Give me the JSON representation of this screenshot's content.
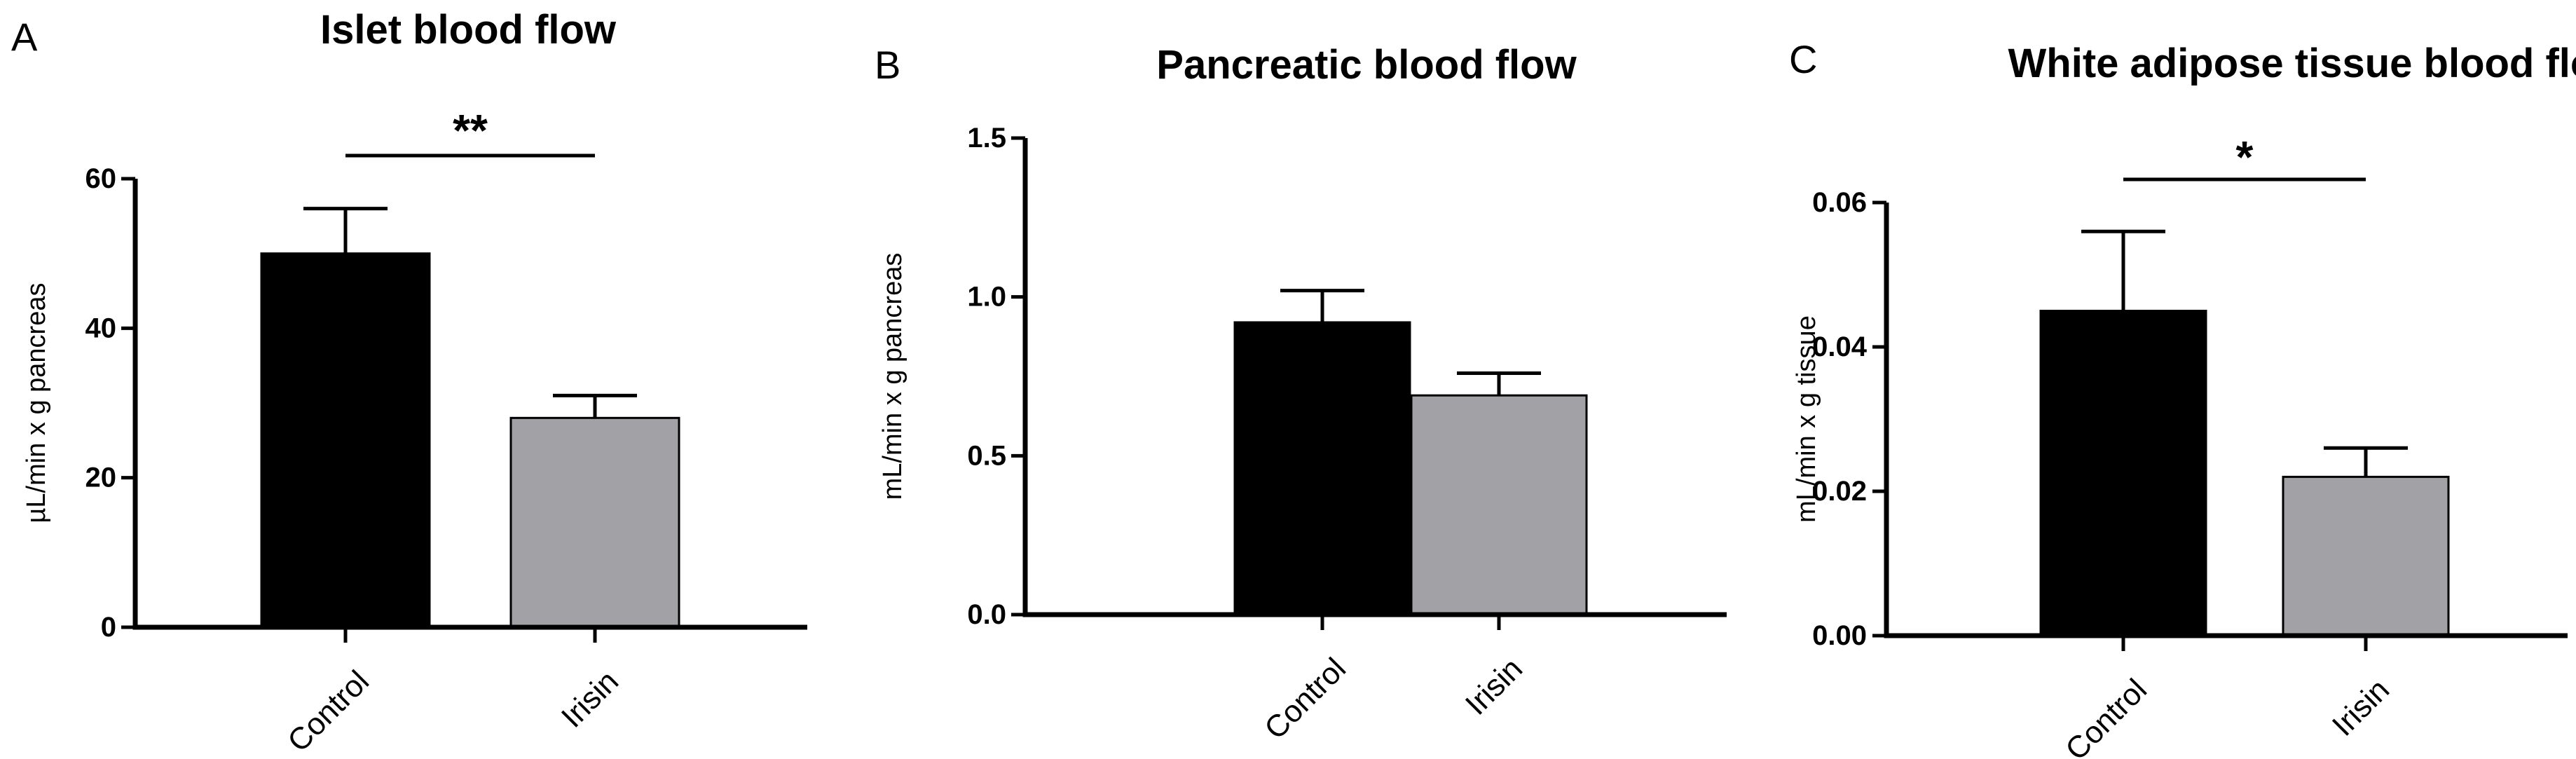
{
  "chart_data": [
    {
      "panel": "A",
      "type": "bar",
      "title": "Islet blood flow",
      "ylabel": "µL/min x g pancreas",
      "xlabel": "",
      "ylim": [
        0,
        60
      ],
      "yticks": [
        0,
        20,
        40,
        60
      ],
      "ytick_labels": [
        "0",
        "20",
        "40",
        "60"
      ],
      "categories": [
        "Control",
        "Irisin"
      ],
      "values": [
        50,
        28
      ],
      "errors": [
        6,
        3
      ],
      "colors": [
        "#000000",
        "#a2a1a6"
      ],
      "significance": "**",
      "grid": false
    },
    {
      "panel": "B",
      "type": "bar",
      "title": "Pancreatic blood flow",
      "ylabel": "mL/min x g pancreas",
      "xlabel": "",
      "ylim": [
        0,
        1.5
      ],
      "yticks": [
        0,
        0.5,
        1.0,
        1.5
      ],
      "ytick_labels": [
        "0.0",
        "0.5",
        "1.0",
        "1.5"
      ],
      "categories": [
        "Control",
        "Irisin"
      ],
      "values": [
        0.92,
        0.69
      ],
      "errors": [
        0.1,
        0.07
      ],
      "colors": [
        "#000000",
        "#a2a1a6"
      ],
      "significance": "",
      "grid": false
    },
    {
      "panel": "C",
      "type": "bar",
      "title": "White adipose tissue blood flow",
      "ylabel": "mL/min x g tissue",
      "xlabel": "",
      "ylim": [
        0,
        0.06
      ],
      "yticks": [
        0,
        0.02,
        0.04,
        0.06
      ],
      "ytick_labels": [
        "0.00",
        "0.02",
        "0.04",
        "0.06"
      ],
      "categories": [
        "Control",
        "Irisin"
      ],
      "values": [
        0.045,
        0.022
      ],
      "errors": [
        0.011,
        0.004
      ],
      "colors": [
        "#000000",
        "#a2a1a6"
      ],
      "significance": "*",
      "grid": false
    }
  ]
}
